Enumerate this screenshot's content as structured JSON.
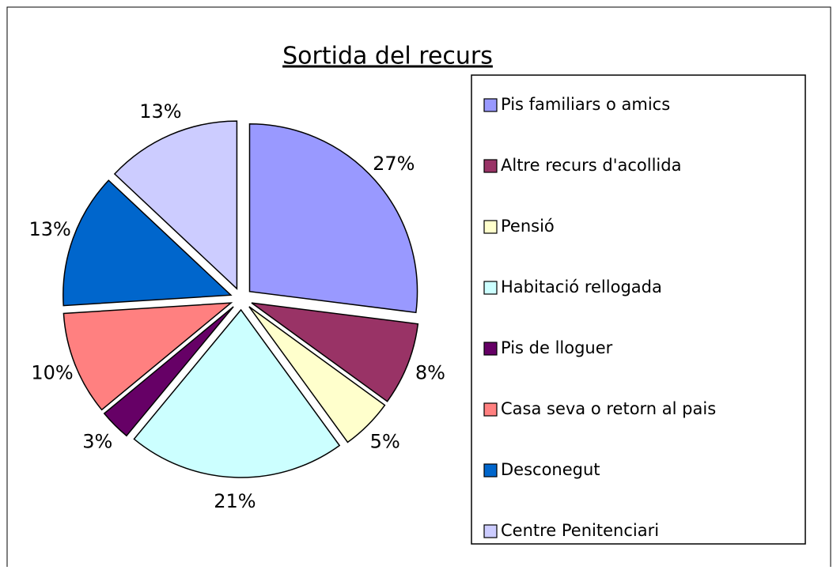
{
  "chart_data": {
    "type": "pie",
    "title": "Sortida del recurs",
    "categories": [
      "Pis familiars o amics",
      "Altre recurs d'acollida",
      "Pensió",
      "Habitació rellogada",
      "Pis de lloguer",
      "Casa seva o retorn al pais",
      "Desconegut",
      "Centre Penitenciari"
    ],
    "values": [
      27,
      8,
      5,
      21,
      3,
      10,
      13,
      13
    ],
    "value_labels": [
      "27%",
      "8%",
      "5%",
      "21%",
      "3%",
      "10%",
      "13%",
      "13%"
    ],
    "colors": [
      "#9999ff",
      "#993366",
      "#ffffcc",
      "#ccffff",
      "#660066",
      "#ff8080",
      "#0066cc",
      "#ccccff"
    ],
    "legend": "right"
  }
}
